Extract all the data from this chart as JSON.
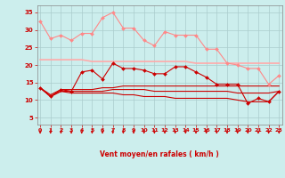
{
  "x": [
    0,
    1,
    2,
    3,
    4,
    5,
    6,
    7,
    8,
    9,
    10,
    11,
    12,
    13,
    14,
    15,
    16,
    17,
    18,
    19,
    20,
    21,
    22,
    23
  ],
  "series": [
    {
      "name": "rafales_max",
      "color": "#ff8888",
      "linewidth": 0.8,
      "markersize": 2.0,
      "marker": "D",
      "values": [
        32.5,
        27.5,
        28.5,
        27.0,
        29.0,
        29.0,
        33.5,
        35.0,
        30.5,
        30.5,
        27.0,
        25.5,
        29.5,
        28.5,
        28.5,
        28.5,
        24.5,
        24.5,
        20.5,
        20.0,
        19.0,
        19.0,
        14.5,
        17.0
      ]
    },
    {
      "name": "rafales_mean",
      "color": "#ffaaaa",
      "linewidth": 1.2,
      "markersize": 0,
      "marker": null,
      "values": [
        21.5,
        21.5,
        21.5,
        21.5,
        21.5,
        21.0,
        21.0,
        21.0,
        21.0,
        21.0,
        21.0,
        21.0,
        21.0,
        21.0,
        21.0,
        20.5,
        20.5,
        20.5,
        20.5,
        20.5,
        20.5,
        20.5,
        20.5,
        20.5
      ]
    },
    {
      "name": "vent_max",
      "color": "#cc0000",
      "linewidth": 0.8,
      "markersize": 2.0,
      "marker": "D",
      "values": [
        13.5,
        11.0,
        13.0,
        12.5,
        18.0,
        18.5,
        16.0,
        20.5,
        19.0,
        19.0,
        18.5,
        17.5,
        17.5,
        19.5,
        19.5,
        18.0,
        16.5,
        14.5,
        14.5,
        14.5,
        9.0,
        10.5,
        9.5,
        12.5
      ]
    },
    {
      "name": "vent_mean_line1",
      "color": "#cc0000",
      "linewidth": 0.8,
      "markersize": 0,
      "marker": null,
      "values": [
        13.5,
        11.5,
        13.0,
        13.0,
        13.0,
        13.0,
        13.5,
        13.5,
        14.0,
        14.0,
        14.0,
        14.0,
        14.0,
        14.0,
        14.0,
        14.0,
        14.0,
        14.0,
        14.0,
        14.0,
        14.0,
        14.0,
        14.0,
        14.0
      ]
    },
    {
      "name": "vent_mean_line2",
      "color": "#cc0000",
      "linewidth": 0.8,
      "markersize": 0,
      "marker": null,
      "values": [
        13.5,
        11.0,
        12.5,
        12.5,
        12.5,
        12.5,
        12.5,
        13.0,
        13.0,
        13.0,
        13.0,
        12.5,
        12.5,
        12.5,
        12.5,
        12.5,
        12.5,
        12.5,
        12.5,
        12.0,
        12.0,
        12.0,
        12.0,
        12.5
      ]
    },
    {
      "name": "vent_min",
      "color": "#cc0000",
      "linewidth": 0.8,
      "markersize": 0,
      "marker": null,
      "values": [
        13.5,
        11.0,
        12.5,
        12.0,
        12.0,
        12.0,
        12.0,
        12.0,
        11.5,
        11.5,
        11.0,
        11.0,
        11.0,
        10.5,
        10.5,
        10.5,
        10.5,
        10.5,
        10.5,
        10.0,
        9.5,
        9.5,
        9.5,
        12.5
      ]
    }
  ],
  "xlabel": "Vent moyen/en rafales ( km/h )",
  "yticks": [
    5,
    10,
    15,
    20,
    25,
    30,
    35
  ],
  "xticks": [
    0,
    1,
    2,
    3,
    4,
    5,
    6,
    7,
    8,
    9,
    10,
    11,
    12,
    13,
    14,
    15,
    16,
    17,
    18,
    19,
    20,
    21,
    22,
    23
  ],
  "ylim": [
    3,
    37
  ],
  "xlim": [
    -0.3,
    23.3
  ],
  "bg_color": "#cceeed",
  "grid_color": "#aacccc",
  "text_color": "#cc0000",
  "arrow_color": "#cc0000"
}
